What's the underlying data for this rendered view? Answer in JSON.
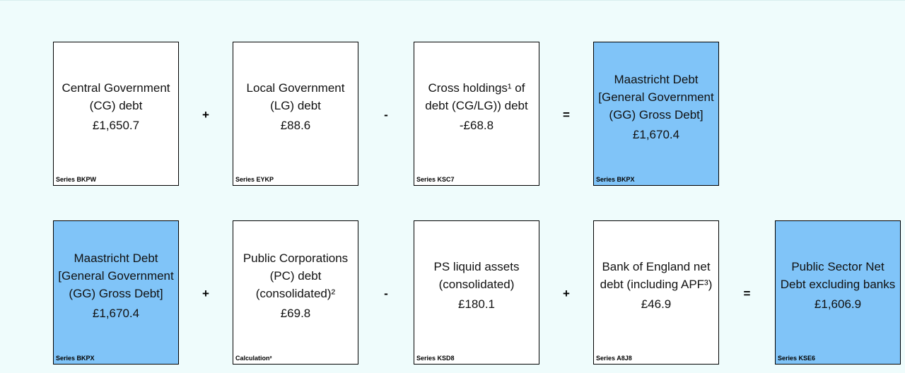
{
  "rows": [
    {
      "boxes": [
        {
          "label": "Central Government (CG) debt",
          "value": "£1,650.7",
          "series": "Series BKPW",
          "highlight": false
        },
        {
          "label": "Local Government (LG) debt",
          "value": "£88.6",
          "series": "Series EYKP",
          "highlight": false
        },
        {
          "label": "Cross holdings¹ of debt (CG/LG)) debt",
          "value": "-£68.8",
          "series": "Series KSC7",
          "highlight": false
        },
        {
          "label": "Maastricht Debt [General Government (GG) Gross Debt]",
          "value": "£1,670.4",
          "series": "Series BKPX",
          "highlight": true
        }
      ],
      "operators": [
        "+",
        "-",
        "="
      ]
    },
    {
      "boxes": [
        {
          "label": "Maastricht Debt [General Government (GG) Gross Debt]",
          "value": "£1,670.4",
          "series": "Series BKPX",
          "highlight": true
        },
        {
          "label": "Public Corporations (PC) debt (consolidated)²",
          "value": "£69.8",
          "series": "Calculation²",
          "highlight": false
        },
        {
          "label": "PS liquid assets (consolidated)",
          "value": "£180.1",
          "series": "Series KSD8",
          "highlight": false
        },
        {
          "label": "Bank of England net debt (including APF³)",
          "value": "£46.9",
          "series": "Series A8J8",
          "highlight": false
        },
        {
          "label": "Public Sector Net Debt excluding banks",
          "value": "£1,606.9",
          "series": "Series KSE6",
          "highlight": true
        }
      ],
      "operators": [
        "+",
        "-",
        "+",
        "="
      ]
    }
  ]
}
